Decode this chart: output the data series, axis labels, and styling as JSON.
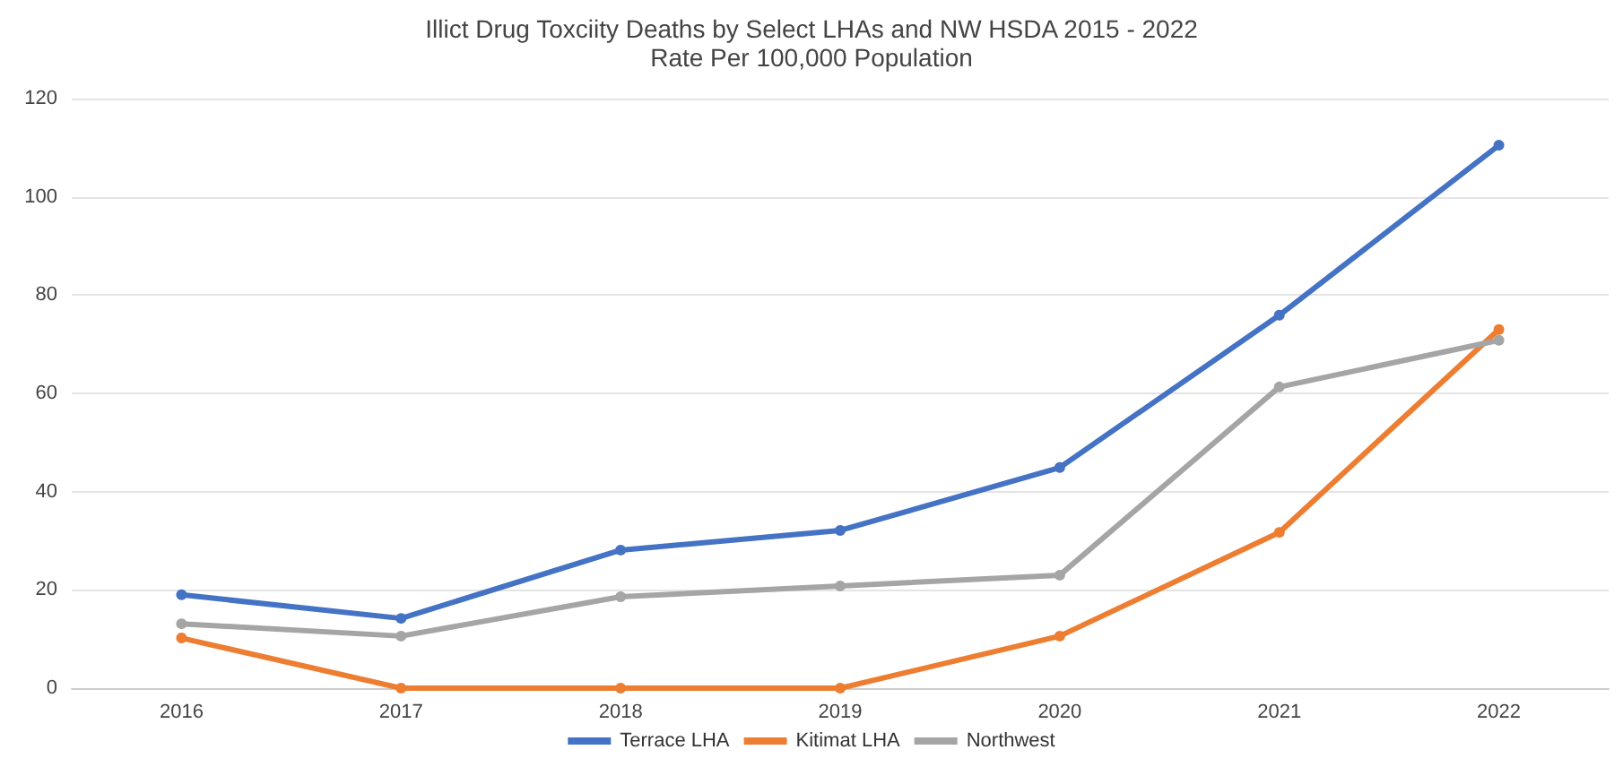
{
  "chart_data": {
    "type": "line",
    "title": "Illict Drug Toxciity Deaths by Select LHAs and NW HSDA 2015 - 2022",
    "subtitle": "Rate Per 100,000 Population",
    "categories": [
      "2016",
      "2017",
      "2018",
      "2019",
      "2020",
      "2021",
      "2022"
    ],
    "series": [
      {
        "name": "Terrace LHA",
        "color": "#4472c4",
        "values": [
          19,
          14.2,
          28.1,
          32.1,
          44.9,
          75.9,
          110.5
        ]
      },
      {
        "name": "Kitimat LHA",
        "color": "#ed7d31",
        "values": [
          10.2,
          0,
          0,
          0,
          10.6,
          31.7,
          73
        ]
      },
      {
        "name": "Northwest",
        "color": "#a5a5a5",
        "values": [
          13.1,
          10.6,
          18.6,
          20.8,
          23,
          61.3,
          70.8
        ]
      }
    ],
    "ylim": [
      0,
      120
    ],
    "yticks": [
      0,
      20,
      40,
      60,
      80,
      100,
      120
    ],
    "grid": "y",
    "legend": "bottom",
    "marker": "circle",
    "line_style": "solid"
  }
}
